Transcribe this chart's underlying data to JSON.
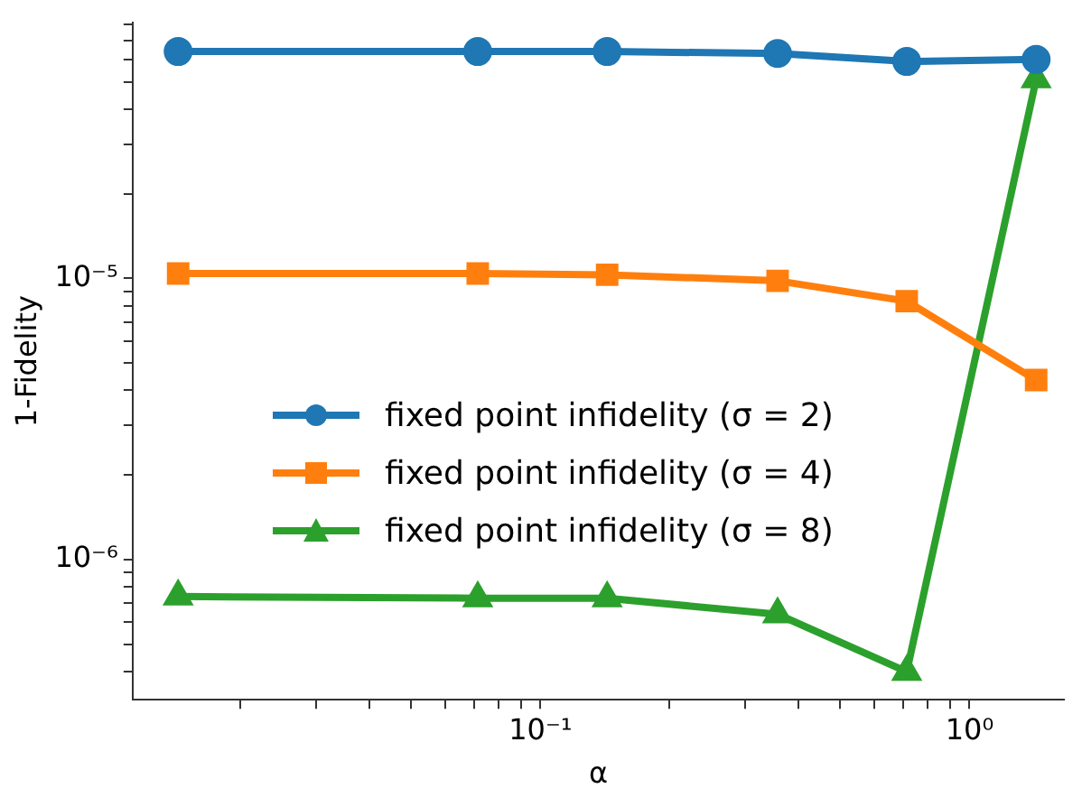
{
  "chart_data": {
    "type": "line",
    "xlabel": "α",
    "ylabel": "1-Fidelity",
    "log": "xy",
    "grid": false,
    "legend": "center",
    "line_style": "solid",
    "x": [
      0.0143,
      0.0714,
      0.143,
      0.357,
      0.714,
      1.43
    ],
    "series": [
      {
        "name": "fixed point infidelity (σ = 2)",
        "color": "#1f77b4",
        "marker": "circle",
        "values": [
          6.4e-05,
          6.4e-05,
          6.4e-05,
          6.3e-05,
          5.9e-05,
          6e-05
        ]
      },
      {
        "name": "fixed point infidelity (σ = 4)",
        "color": "#ff7f0e",
        "marker": "square",
        "values": [
          1.04e-05,
          1.04e-05,
          1.03e-05,
          9.8e-06,
          8.3e-06,
          4.35e-06
        ]
      },
      {
        "name": "fixed point infidelity (σ = 8)",
        "color": "#2ca02c",
        "marker": "triangle",
        "values": [
          7.4e-07,
          7.3e-07,
          7.3e-07,
          6.4e-07,
          4e-07,
          5.1e-05
        ]
      }
    ],
    "xlim": [
      0.0112,
      1.66
    ],
    "ylim": [
      3.18e-07,
      8.1e-05
    ],
    "xticks": [
      {
        "value": 0.02,
        "label": null
      },
      {
        "value": 0.03,
        "label": null
      },
      {
        "value": 0.04,
        "label": null
      },
      {
        "value": 0.05,
        "label": null
      },
      {
        "value": 0.06,
        "label": null
      },
      {
        "value": 0.07,
        "label": null
      },
      {
        "value": 0.08,
        "label": null
      },
      {
        "value": 0.09,
        "label": null
      },
      {
        "value": 0.1,
        "label": "10⁻¹"
      },
      {
        "value": 0.2,
        "label": null
      },
      {
        "value": 0.3,
        "label": null
      },
      {
        "value": 0.4,
        "label": null
      },
      {
        "value": 0.5,
        "label": null
      },
      {
        "value": 0.6,
        "label": null
      },
      {
        "value": 0.7,
        "label": null
      },
      {
        "value": 0.8,
        "label": null
      },
      {
        "value": 0.9,
        "label": null
      },
      {
        "value": 1,
        "label": "10⁰"
      }
    ],
    "yticks": [
      {
        "value": 4e-07,
        "label": null
      },
      {
        "value": 5e-07,
        "label": null
      },
      {
        "value": 6e-07,
        "label": null
      },
      {
        "value": 7e-07,
        "label": null
      },
      {
        "value": 8e-07,
        "label": null
      },
      {
        "value": 9e-07,
        "label": null
      },
      {
        "value": 1e-06,
        "label": "10⁻⁶"
      },
      {
        "value": 2e-06,
        "label": null
      },
      {
        "value": 3e-06,
        "label": null
      },
      {
        "value": 4e-06,
        "label": null
      },
      {
        "value": 5e-06,
        "label": null
      },
      {
        "value": 6e-06,
        "label": null
      },
      {
        "value": 7e-06,
        "label": null
      },
      {
        "value": 8e-06,
        "label": null
      },
      {
        "value": 9e-06,
        "label": null
      },
      {
        "value": 1e-05,
        "label": "10⁻⁵"
      },
      {
        "value": 2e-05,
        "label": null
      },
      {
        "value": 3e-05,
        "label": null
      },
      {
        "value": 4e-05,
        "label": null
      },
      {
        "value": 5e-05,
        "label": null
      },
      {
        "value": 6e-05,
        "label": null
      },
      {
        "value": 7e-05,
        "label": null
      },
      {
        "value": 8e-05,
        "label": null
      }
    ]
  }
}
